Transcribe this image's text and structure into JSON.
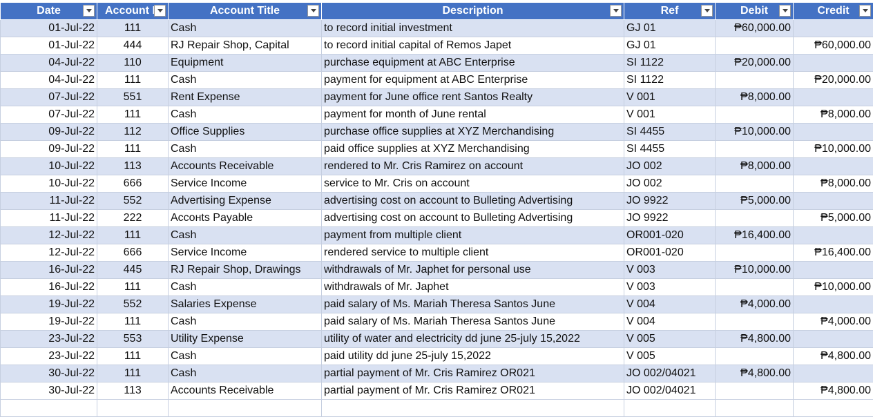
{
  "table": {
    "header": [
      "Date",
      "Account N",
      "Account Title",
      "Description",
      "Ref",
      "Debit",
      "Credit"
    ],
    "rows": [
      [
        "01-Jul-22",
        "111",
        "Cash",
        "to record initial investment",
        "GJ 01",
        "₱60,000.00",
        null
      ],
      [
        "01-Jul-22",
        "444",
        "RJ Repair Shop, Capital",
        "to record initial capital of Remos Japet",
        "GJ 01",
        null,
        "₱60,000.00"
      ],
      [
        "04-Jul-22",
        "110",
        "Equipment",
        "purchase equipment at ABC Enterprise",
        "SI 1122",
        "₱20,000.00",
        null
      ],
      [
        "04-Jul-22",
        "111",
        "Cash",
        "payment for equipment at ABC Enterprise",
        "SI 1122",
        null,
        "₱20,000.00"
      ],
      [
        "07-Jul-22",
        "551",
        "Rent Expense",
        "payment for June office rent Santos Realty",
        "V 001",
        "₱8,000.00",
        null
      ],
      [
        "07-Jul-22",
        "111",
        "Cash",
        "payment for month of June rental",
        "V 001",
        null,
        "₱8,000.00"
      ],
      [
        "09-Jul-22",
        "112",
        "Office Supplies",
        "purchase office supplies at XYZ Merchandising",
        "SI 4455",
        "₱10,000.00",
        null
      ],
      [
        "09-Jul-22",
        "111",
        "Cash",
        "paid office supplies at XYZ Merchandising",
        "SI 4455",
        null,
        "₱10,000.00"
      ],
      [
        "10-Jul-22",
        "113",
        "Accounts Receivable",
        "rendered to Mr. Cris Ramirez on account",
        "JO 002",
        "₱8,000.00",
        null
      ],
      [
        "10-Jul-22",
        "666",
        "Service Income",
        "service to Mr. Cris on account",
        "JO 002",
        null,
        "₱8,000.00"
      ],
      [
        "11-Jul-22",
        "552",
        "Advertising Expense",
        "advertising cost on account to Bulleting Advertising",
        "JO 9922",
        "₱5,000.00",
        null
      ],
      [
        "11-Jul-22",
        "222",
        "Accонts Payable",
        "advertising cost on account to Bulleting Advertising",
        "JO 9922",
        null,
        "₱5,000.00"
      ],
      [
        "12-Jul-22",
        "111",
        "Cash",
        "payment from multiple client",
        "OR001-020",
        "₱16,400.00",
        null
      ],
      [
        "12-Jul-22",
        "666",
        "Service Income",
        "rendered service to multiple client",
        "OR001-020",
        null,
        "₱16,400.00"
      ],
      [
        "16-Jul-22",
        "445",
        "RJ Repair Shop, Drawings",
        "withdrawals of Mr. Japhet for personal use",
        "V 003",
        "₱10,000.00",
        null
      ],
      [
        "16-Jul-22",
        "111",
        "Cash",
        "withdrawals of Mr. Japhet",
        "V 003",
        null,
        "₱10,000.00"
      ],
      [
        "19-Jul-22",
        "552",
        "Salaries Expense",
        "paid salary of Ms. Mariah Theresa Santos June",
        "V 004",
        "₱4,000.00",
        null
      ],
      [
        "19-Jul-22",
        "111",
        "Cash",
        "paid salary of Ms. Mariah Theresa Santos June",
        "V 004",
        null,
        "₱4,000.00"
      ],
      [
        "23-Jul-22",
        "553",
        "Utility Expense",
        "utility of water and electricity dd june 25-july 15,2022",
        "V 005",
        "₱4,800.00",
        null
      ],
      [
        "23-Jul-22",
        "111",
        "Cash",
        "paid utility dd june 25-july 15,2022",
        "V 005",
        null,
        "₱4,800.00"
      ],
      [
        "30-Jul-22",
        "111",
        "Cash",
        "partial payment of Mr. Cris Ramirez OR021",
        "JO 002/04021",
        "₱4,800.00",
        null
      ],
      [
        "30-Jul-22",
        "113",
        "Accounts Receivable",
        "partial payment of Mr. Cris Ramirez OR021",
        "JO 002/04021",
        null,
        "₱4,800.00"
      ]
    ]
  }
}
